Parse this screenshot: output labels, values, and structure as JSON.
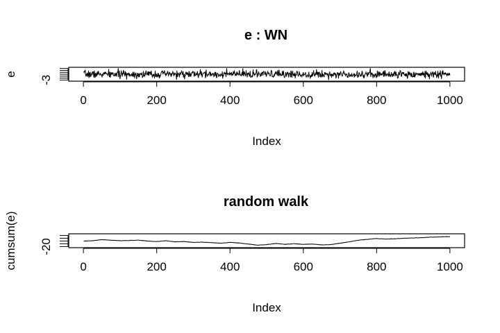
{
  "chart_data": [
    {
      "type": "line",
      "title": "e : WN",
      "xlabel": "Index",
      "ylabel": "e",
      "xlim": [
        -40,
        1040
      ],
      "ylim": [
        -3.6,
        3.6
      ],
      "xticks": [
        0,
        200,
        400,
        600,
        800,
        1000
      ],
      "yticks": [
        -3,
        -2,
        -1,
        0,
        1,
        2,
        3
      ],
      "ytick_labels_shown": [
        "-3"
      ],
      "grid": false,
      "n": 1000,
      "x_range": [
        1,
        1000
      ],
      "series": [
        {
          "style": "white-noise",
          "x_sample": [
            1,
            50,
            100,
            150,
            200,
            250,
            300,
            350,
            400,
            450,
            500,
            550,
            600,
            650,
            700,
            750,
            800,
            850,
            900,
            950,
            1000
          ],
          "values": [
            0.3,
            -0.8,
            1.1,
            -0.4,
            0.6,
            -1.3,
            0.2,
            0.9,
            -0.5,
            1.4,
            -0.2,
            -0.9,
            0.7,
            0.1,
            -1.1,
            0.5,
            -0.3,
            1.0,
            -0.6,
            0.4,
            -0.1
          ]
        }
      ]
    },
    {
      "type": "line",
      "title": "random walk",
      "xlabel": "Index",
      "ylabel": "cumsum(e)",
      "xlim": [
        -40,
        1040
      ],
      "ylim": [
        -24,
        26
      ],
      "xticks": [
        0,
        200,
        400,
        600,
        800,
        1000
      ],
      "yticks": [
        -20,
        -10,
        0,
        10,
        20
      ],
      "ytick_labels_shown": [
        "-20"
      ],
      "grid": false,
      "series": [
        {
          "style": "random-walk",
          "x": [
            1,
            25,
            50,
            75,
            100,
            125,
            150,
            175,
            200,
            225,
            250,
            275,
            300,
            325,
            350,
            375,
            400,
            425,
            450,
            475,
            500,
            525,
            550,
            575,
            600,
            625,
            650,
            675,
            700,
            725,
            750,
            775,
            800,
            825,
            850,
            875,
            900,
            925,
            950,
            975,
            1000
          ],
          "values": [
            0,
            1,
            5,
            3,
            1,
            2,
            3,
            0,
            -2,
            1,
            -3,
            -2,
            -5,
            -4,
            -6,
            -8,
            -5,
            -7,
            -11,
            -15,
            -13,
            -9,
            -12,
            -10,
            -12,
            -11,
            -14,
            -13,
            -8,
            -3,
            3,
            6,
            9,
            7,
            8,
            10,
            11,
            12,
            14,
            15,
            16
          ]
        }
      ]
    }
  ]
}
